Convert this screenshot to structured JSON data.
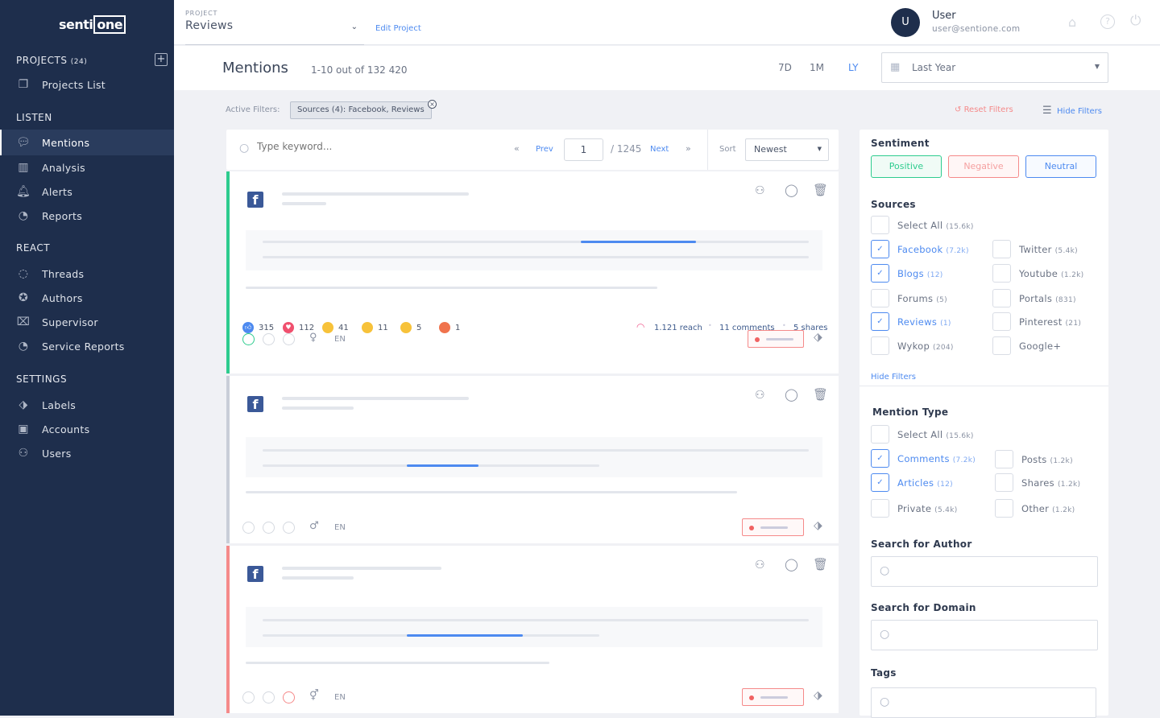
{
  "sidebar": {
    "logo": "sentione",
    "sections": {
      "projects": "PROJECTS",
      "projects_count": "(24)",
      "listen": "LISTEN",
      "react": "REACT",
      "settings": "SETTINGS"
    },
    "items": [
      {
        "label": "Projects List",
        "icon": "projects-list-icon"
      },
      {
        "label": "Mentions",
        "icon": "mentions-icon"
      },
      {
        "label": "Analysis",
        "icon": "analysis-icon"
      },
      {
        "label": "Alerts",
        "icon": "bell-icon"
      },
      {
        "label": "Reports",
        "icon": "reports-icon"
      },
      {
        "label": "Threads",
        "icon": "threads-icon"
      },
      {
        "label": "Authors",
        "icon": "authors-icon"
      },
      {
        "label": "Supervisor",
        "icon": "supervisor-icon"
      },
      {
        "label": "Service Reports",
        "icon": "service-reports-icon"
      },
      {
        "label": "Labels",
        "icon": "labels-icon"
      },
      {
        "label": "Accounts",
        "icon": "accounts-icon"
      },
      {
        "label": "Users",
        "icon": "user-icon"
      }
    ]
  },
  "header": {
    "project_label": "PROJECT",
    "project_value": "Reviews",
    "edit_project": "Edit Project",
    "user_initial": "U",
    "user_name": "User",
    "user_email": "user@sentione.com"
  },
  "mentions_bar": {
    "title": "Mentions",
    "count": "1-10 out of 132 420",
    "ranges": [
      "7D",
      "1M",
      "LY"
    ],
    "active_range": "LY",
    "date_select": "Last Year"
  },
  "filters": {
    "label": "Active Filters:",
    "chip": "Sources (4): Facebook, Reviews",
    "reset": "Reset Filters",
    "hide": "Hide Filters"
  },
  "toolbar": {
    "search_placeholder": "Type keyword...",
    "prev": "Prev",
    "page": "1",
    "total_pages": "/ 1245",
    "next": "Next",
    "sort_label": "Sort",
    "sort_value": "Newest"
  },
  "mentions": [
    {
      "sentiment": "positive",
      "color": "#2ecc8f",
      "reactions": [
        {
          "type": "like",
          "count": "315"
        },
        {
          "type": "love",
          "count": "112"
        },
        {
          "type": "haha",
          "count": "41"
        },
        {
          "type": "wow",
          "count": "11"
        },
        {
          "type": "sad",
          "count": "5"
        },
        {
          "type": "angry",
          "count": "1"
        }
      ],
      "reach": "1.121 reach",
      "comments": "11 comments",
      "shares": "5 shares",
      "gender": "female",
      "lang": "EN"
    },
    {
      "sentiment": "neutral",
      "color": "#c9ced8",
      "gender": "male",
      "lang": "EN"
    },
    {
      "sentiment": "negative",
      "color": "#f58a8a",
      "gender": "other",
      "lang": "EN"
    }
  ],
  "panel": {
    "sentiment_title": "Sentiment",
    "sentiment": [
      "Positive",
      "Negative",
      "Neutral"
    ],
    "sources_title": "Sources",
    "sources": [
      {
        "label": "Select All",
        "count": "(15.6k)",
        "checked": false
      },
      {
        "label": "Facebook",
        "count": "(7.2k)",
        "checked": true
      },
      {
        "label": "Twitter",
        "count": "(5.4k)",
        "checked": false
      },
      {
        "label": "Blogs",
        "count": "(12)",
        "checked": true
      },
      {
        "label": "Youtube",
        "count": "(1.2k)",
        "checked": false
      },
      {
        "label": "Forums",
        "count": "(5)",
        "checked": false
      },
      {
        "label": "Portals",
        "count": "(831)",
        "checked": false
      },
      {
        "label": "Reviews",
        "count": "(1)",
        "checked": true
      },
      {
        "label": "Pinterest",
        "count": "(21)",
        "checked": false
      },
      {
        "label": "Wykop",
        "count": "(204)",
        "checked": false
      },
      {
        "label": "Google+",
        "count": "",
        "checked": false
      }
    ],
    "hide_filters": "Hide Filters",
    "mention_type_title": "Mention Type",
    "mention_types": [
      {
        "label": "Select All",
        "count": "(15.6k)",
        "checked": false
      },
      {
        "label": "Comments",
        "count": "(7.2k)",
        "checked": true
      },
      {
        "label": "Posts",
        "count": "(1.2k)",
        "checked": false
      },
      {
        "label": "Articles",
        "count": "(12)",
        "checked": true
      },
      {
        "label": "Shares",
        "count": "(1.2k)",
        "checked": false
      },
      {
        "label": "Private",
        "count": "(5.4k)",
        "checked": false
      },
      {
        "label": "Other",
        "count": "(1.2k)",
        "checked": false
      }
    ],
    "author_title": "Search for Author",
    "domain_title": "Search for Domain",
    "tags_title": "Tags"
  }
}
